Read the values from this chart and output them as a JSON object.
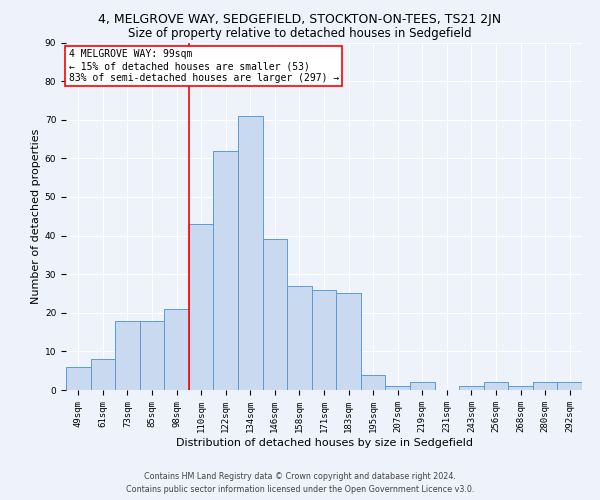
{
  "title1": "4, MELGROVE WAY, SEDGEFIELD, STOCKTON-ON-TEES, TS21 2JN",
  "title2": "Size of property relative to detached houses in Sedgefield",
  "xlabel": "Distribution of detached houses by size in Sedgefield",
  "ylabel": "Number of detached properties",
  "categories": [
    "49sqm",
    "61sqm",
    "73sqm",
    "85sqm",
    "98sqm",
    "110sqm",
    "122sqm",
    "134sqm",
    "146sqm",
    "158sqm",
    "171sqm",
    "183sqm",
    "195sqm",
    "207sqm",
    "219sqm",
    "231sqm",
    "243sqm",
    "256sqm",
    "268sqm",
    "280sqm",
    "292sqm"
  ],
  "values": [
    6,
    8,
    18,
    18,
    21,
    43,
    62,
    71,
    39,
    27,
    26,
    25,
    4,
    1,
    2,
    0,
    1,
    2,
    1,
    2,
    2
  ],
  "bar_color": "#c9d9f0",
  "bar_edge_color": "#5b9bd5",
  "red_line_index": 4,
  "annotation_title": "4 MELGROVE WAY: 99sqm",
  "annotation_line1": "← 15% of detached houses are smaller (53)",
  "annotation_line2": "83% of semi-detached houses are larger (297) →",
  "ylim": [
    0,
    90
  ],
  "yticks": [
    0,
    10,
    20,
    30,
    40,
    50,
    60,
    70,
    80,
    90
  ],
  "footer1": "Contains HM Land Registry data © Crown copyright and database right 2024.",
  "footer2": "Contains public sector information licensed under the Open Government Licence v3.0.",
  "background_color": "#eef2fb",
  "grid_color": "#ffffff",
  "title1_fontsize": 9,
  "title2_fontsize": 8.5,
  "xlabel_fontsize": 8,
  "ylabel_fontsize": 8,
  "tick_fontsize": 6.5,
  "annotation_fontsize": 7,
  "footer_fontsize": 5.8
}
